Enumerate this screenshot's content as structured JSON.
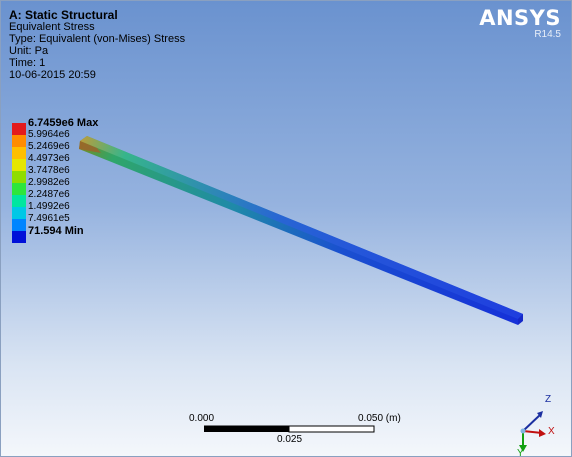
{
  "header": {
    "title": "A: Static Structural",
    "result": "Equivalent Stress",
    "type": "Type: Equivalent (von-Mises) Stress",
    "unit": "Unit: Pa",
    "time": "Time: 1",
    "datetime": "10-06-2015 20:59"
  },
  "logo": {
    "brand": "ANSYS",
    "version": "R14.5"
  },
  "legend": {
    "items": [
      {
        "label": "6.7459e6 Max",
        "color": "#e31a1c",
        "bold": true
      },
      {
        "label": "5.9964e6",
        "color": "#ff8c00",
        "bold": false
      },
      {
        "label": "5.2469e6",
        "color": "#ffbf00",
        "bold": false
      },
      {
        "label": "4.4973e6",
        "color": "#e6e600",
        "bold": false
      },
      {
        "label": "3.7478e6",
        "color": "#8fdd00",
        "bold": false
      },
      {
        "label": "2.9982e6",
        "color": "#2ee63c",
        "bold": false
      },
      {
        "label": "2.2487e6",
        "color": "#00e6a0",
        "bold": false
      },
      {
        "label": "1.4992e6",
        "color": "#00c8e6",
        "bold": false
      },
      {
        "label": "7.4961e5",
        "color": "#0085ff",
        "bold": false
      },
      {
        "label": "71.594 Min",
        "color": "#0010d8",
        "bold": true
      }
    ]
  },
  "scale": {
    "left_label": "0.000",
    "right_label": "0.050 (m)",
    "mid_label": "0.025"
  },
  "triad": {
    "x_label": "X",
    "y_label": "Y",
    "z_label": "Z"
  }
}
